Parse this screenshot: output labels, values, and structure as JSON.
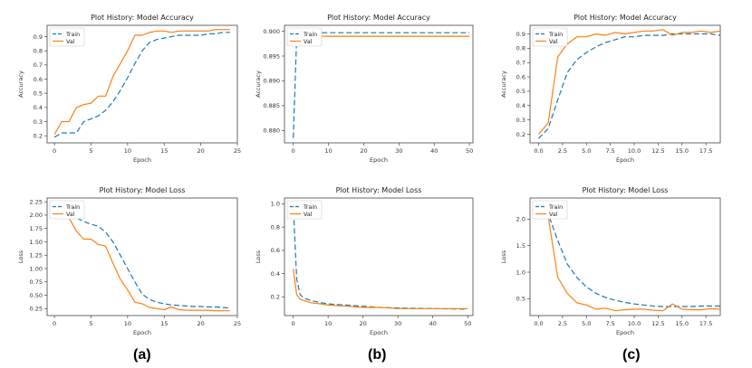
{
  "captions": [
    "(a)",
    "(b)",
    "(c)"
  ],
  "chart_data": [
    {
      "type": "line",
      "title": "Plot History: Model Accuracy",
      "xlabel": "Epoch",
      "ylabel": "Accuracy",
      "xlim": [
        -1,
        25
      ],
      "ylim": [
        0.15,
        0.98
      ],
      "xticks": [
        0,
        5,
        10,
        15,
        20,
        25
      ],
      "yticks": [
        0.2,
        0.3,
        0.4,
        0.5,
        0.6,
        0.7,
        0.8,
        0.9
      ],
      "ytick_labels": [
        "0.2",
        "0.3",
        "0.4",
        "0.5",
        "0.6",
        "0.7",
        "0.8",
        "0.9"
      ],
      "legend": "top-left",
      "series": [
        {
          "name": "Train",
          "color": "#1f77b4",
          "dash": true,
          "x": [
            0,
            1,
            2,
            3,
            4,
            5,
            6,
            7,
            8,
            9,
            10,
            11,
            12,
            13,
            14,
            15,
            16,
            17,
            18,
            19,
            20,
            21,
            22,
            23,
            24
          ],
          "values": [
            0.19,
            0.22,
            0.22,
            0.22,
            0.3,
            0.32,
            0.34,
            0.38,
            0.44,
            0.52,
            0.61,
            0.71,
            0.8,
            0.86,
            0.88,
            0.89,
            0.9,
            0.91,
            0.91,
            0.91,
            0.91,
            0.92,
            0.92,
            0.93,
            0.93
          ]
        },
        {
          "name": "Val",
          "color": "#ff7f0e",
          "dash": false,
          "x": [
            0,
            1,
            2,
            3,
            4,
            5,
            6,
            7,
            8,
            9,
            10,
            11,
            12,
            13,
            14,
            15,
            16,
            17,
            18,
            19,
            20,
            21,
            22,
            23,
            24
          ],
          "values": [
            0.21,
            0.3,
            0.3,
            0.4,
            0.42,
            0.43,
            0.48,
            0.48,
            0.62,
            0.71,
            0.8,
            0.91,
            0.91,
            0.93,
            0.94,
            0.94,
            0.93,
            0.94,
            0.94,
            0.94,
            0.94,
            0.94,
            0.95,
            0.95,
            0.95
          ]
        }
      ]
    },
    {
      "type": "line",
      "title": "Plot History: Model Accuracy",
      "xlabel": "Epoch",
      "ylabel": "Accuracy",
      "xlim": [
        -2.5,
        51
      ],
      "ylim": [
        0.8775,
        0.9012
      ],
      "xticks": [
        0,
        10,
        20,
        30,
        40,
        50
      ],
      "yticks": [
        0.88,
        0.885,
        0.89,
        0.895,
        0.9
      ],
      "ytick_labels": [
        "0.880",
        "0.885",
        "0.890",
        "0.895",
        "0.900"
      ],
      "legend": "top-left",
      "series": [
        {
          "name": "Train",
          "color": "#1f77b4",
          "dash": true,
          "x": [
            0,
            1,
            2,
            50
          ],
          "values": [
            0.8785,
            0.8997,
            0.8997,
            0.8997
          ]
        },
        {
          "name": "Val",
          "color": "#ff7f0e",
          "dash": false,
          "x": [
            0,
            1,
            50
          ],
          "values": [
            0.899,
            0.899,
            0.899
          ]
        }
      ]
    },
    {
      "type": "line",
      "title": "Plot History: Model Accuracy",
      "xlabel": "Epoch",
      "ylabel": "Accuracy",
      "xlim": [
        -0.9,
        19
      ],
      "ylim": [
        0.14,
        0.96
      ],
      "xticks": [
        0,
        2.5,
        5,
        7.5,
        10,
        12.5,
        15,
        17.5
      ],
      "xtick_labels": [
        "0.0",
        "2.5",
        "5.0",
        "7.5",
        "10.0",
        "12.5",
        "15.0",
        "17.5"
      ],
      "yticks": [
        0.2,
        0.3,
        0.4,
        0.5,
        0.6,
        0.7,
        0.8,
        0.9
      ],
      "ytick_labels": [
        "0.2",
        "0.3",
        "0.4",
        "0.5",
        "0.6",
        "0.7",
        "0.8",
        "0.9"
      ],
      "legend": "top-left",
      "series": [
        {
          "name": "Train",
          "color": "#1f77b4",
          "dash": true,
          "x": [
            0,
            1,
            2,
            3,
            4,
            5,
            6,
            7,
            8,
            9,
            10,
            11,
            12,
            13,
            14,
            15,
            16,
            17,
            18,
            19
          ],
          "values": [
            0.17,
            0.24,
            0.44,
            0.63,
            0.72,
            0.77,
            0.81,
            0.84,
            0.86,
            0.88,
            0.88,
            0.89,
            0.89,
            0.89,
            0.9,
            0.9,
            0.9,
            0.9,
            0.9,
            0.89
          ]
        },
        {
          "name": "Val",
          "color": "#ff7f0e",
          "dash": false,
          "x": [
            0,
            1,
            2,
            3,
            4,
            5,
            6,
            7,
            8,
            9,
            10,
            11,
            12,
            13,
            14,
            15,
            16,
            17,
            18,
            19
          ],
          "values": [
            0.2,
            0.28,
            0.74,
            0.83,
            0.88,
            0.88,
            0.9,
            0.89,
            0.91,
            0.9,
            0.91,
            0.92,
            0.92,
            0.93,
            0.89,
            0.91,
            0.91,
            0.92,
            0.91,
            0.92
          ]
        }
      ]
    },
    {
      "type": "line",
      "title": "Plot History: Model Loss",
      "xlabel": "Epoch",
      "ylabel": "Loss",
      "xlim": [
        -1,
        25
      ],
      "ylim": [
        0.12,
        2.32
      ],
      "xticks": [
        0,
        5,
        10,
        15,
        20,
        25
      ],
      "yticks": [
        0.25,
        0.5,
        0.75,
        1.0,
        1.25,
        1.5,
        1.75,
        2.0,
        2.25
      ],
      "ytick_labels": [
        "0.25",
        "0.50",
        "0.75",
        "1.00",
        "1.25",
        "1.50",
        "1.75",
        "2.00",
        "2.25"
      ],
      "legend": "top-left",
      "series": [
        {
          "name": "Train",
          "color": "#1f77b4",
          "dash": true,
          "x": [
            0,
            1,
            2,
            3,
            4,
            5,
            6,
            7,
            8,
            9,
            10,
            11,
            12,
            13,
            14,
            15,
            16,
            17,
            18,
            19,
            20,
            21,
            22,
            23,
            24
          ],
          "values": [
            2.1,
            2.08,
            2.03,
            1.95,
            1.88,
            1.83,
            1.79,
            1.68,
            1.5,
            1.25,
            1.0,
            0.75,
            0.52,
            0.42,
            0.37,
            0.34,
            0.32,
            0.31,
            0.3,
            0.29,
            0.29,
            0.28,
            0.28,
            0.27,
            0.26
          ]
        },
        {
          "name": "Val",
          "color": "#ff7f0e",
          "dash": false,
          "x": [
            0,
            1,
            2,
            3,
            4,
            5,
            6,
            7,
            8,
            9,
            10,
            11,
            12,
            13,
            14,
            15,
            16,
            17,
            18,
            19,
            20,
            21,
            22,
            23,
            24
          ],
          "values": [
            2.05,
            1.98,
            1.95,
            1.7,
            1.55,
            1.55,
            1.45,
            1.42,
            1.1,
            0.8,
            0.6,
            0.37,
            0.34,
            0.27,
            0.25,
            0.23,
            0.28,
            0.23,
            0.22,
            0.22,
            0.22,
            0.22,
            0.21,
            0.21,
            0.21
          ]
        }
      ]
    },
    {
      "type": "line",
      "title": "Plot History: Model Loss",
      "xlabel": "Epoch",
      "ylabel": "Loss",
      "xlim": [
        -2.5,
        51.5
      ],
      "ylim": [
        0.04,
        1.05
      ],
      "xticks": [
        0,
        10,
        20,
        30,
        40,
        50
      ],
      "yticks": [
        0.2,
        0.4,
        0.6,
        0.8,
        1.0
      ],
      "ytick_labels": [
        "0.2",
        "0.4",
        "0.6",
        "0.8",
        "1.0"
      ],
      "legend": "top-left",
      "series": [
        {
          "name": "Train",
          "color": "#1f77b4",
          "dash": true,
          "x": [
            0,
            1,
            2,
            3,
            5,
            8,
            10,
            15,
            20,
            25,
            30,
            40,
            50
          ],
          "values": [
            1.0,
            0.35,
            0.22,
            0.19,
            0.17,
            0.15,
            0.14,
            0.13,
            0.12,
            0.11,
            0.105,
            0.1,
            0.095
          ]
        },
        {
          "name": "Val",
          "color": "#ff7f0e",
          "dash": false,
          "x": [
            0,
            1,
            2,
            3,
            5,
            8,
            10,
            15,
            20,
            25,
            30,
            40,
            50
          ],
          "values": [
            0.44,
            0.22,
            0.18,
            0.17,
            0.15,
            0.14,
            0.13,
            0.12,
            0.11,
            0.11,
            0.1,
            0.1,
            0.1
          ]
        }
      ]
    },
    {
      "type": "line",
      "title": "Plot History: Model Loss",
      "xlabel": "Epoch",
      "ylabel": "Loss",
      "xlim": [
        -0.9,
        19
      ],
      "ylim": [
        0.18,
        2.4
      ],
      "xticks": [
        0,
        2.5,
        5,
        7.5,
        10,
        12.5,
        15,
        17.5
      ],
      "xtick_labels": [
        "0.0",
        "2.5",
        "5.0",
        "7.5",
        "10.0",
        "12.5",
        "15.0",
        "17.5"
      ],
      "yticks": [
        0.5,
        1.0,
        1.5,
        2.0
      ],
      "ytick_labels": [
        "0.5",
        "1.0",
        "1.5",
        "2.0"
      ],
      "legend": "top-left",
      "series": [
        {
          "name": "Train",
          "color": "#1f77b4",
          "dash": true,
          "x": [
            0,
            1,
            2,
            3,
            4,
            5,
            6,
            7,
            8,
            9,
            10,
            11,
            12,
            13,
            14,
            15,
            16,
            17,
            18,
            19
          ],
          "values": [
            2.25,
            2.1,
            1.6,
            1.15,
            0.9,
            0.72,
            0.6,
            0.52,
            0.47,
            0.43,
            0.4,
            0.38,
            0.36,
            0.35,
            0.35,
            0.35,
            0.35,
            0.36,
            0.36,
            0.36
          ]
        },
        {
          "name": "Val",
          "color": "#ff7f0e",
          "dash": false,
          "x": [
            0,
            1,
            2,
            3,
            4,
            5,
            6,
            7,
            8,
            9,
            10,
            11,
            12,
            13,
            14,
            15,
            16,
            17,
            18,
            19
          ],
          "values": [
            2.3,
            2.05,
            0.9,
            0.6,
            0.42,
            0.38,
            0.3,
            0.32,
            0.27,
            0.29,
            0.3,
            0.3,
            0.28,
            0.27,
            0.4,
            0.3,
            0.29,
            0.29,
            0.31,
            0.3
          ]
        }
      ]
    }
  ]
}
